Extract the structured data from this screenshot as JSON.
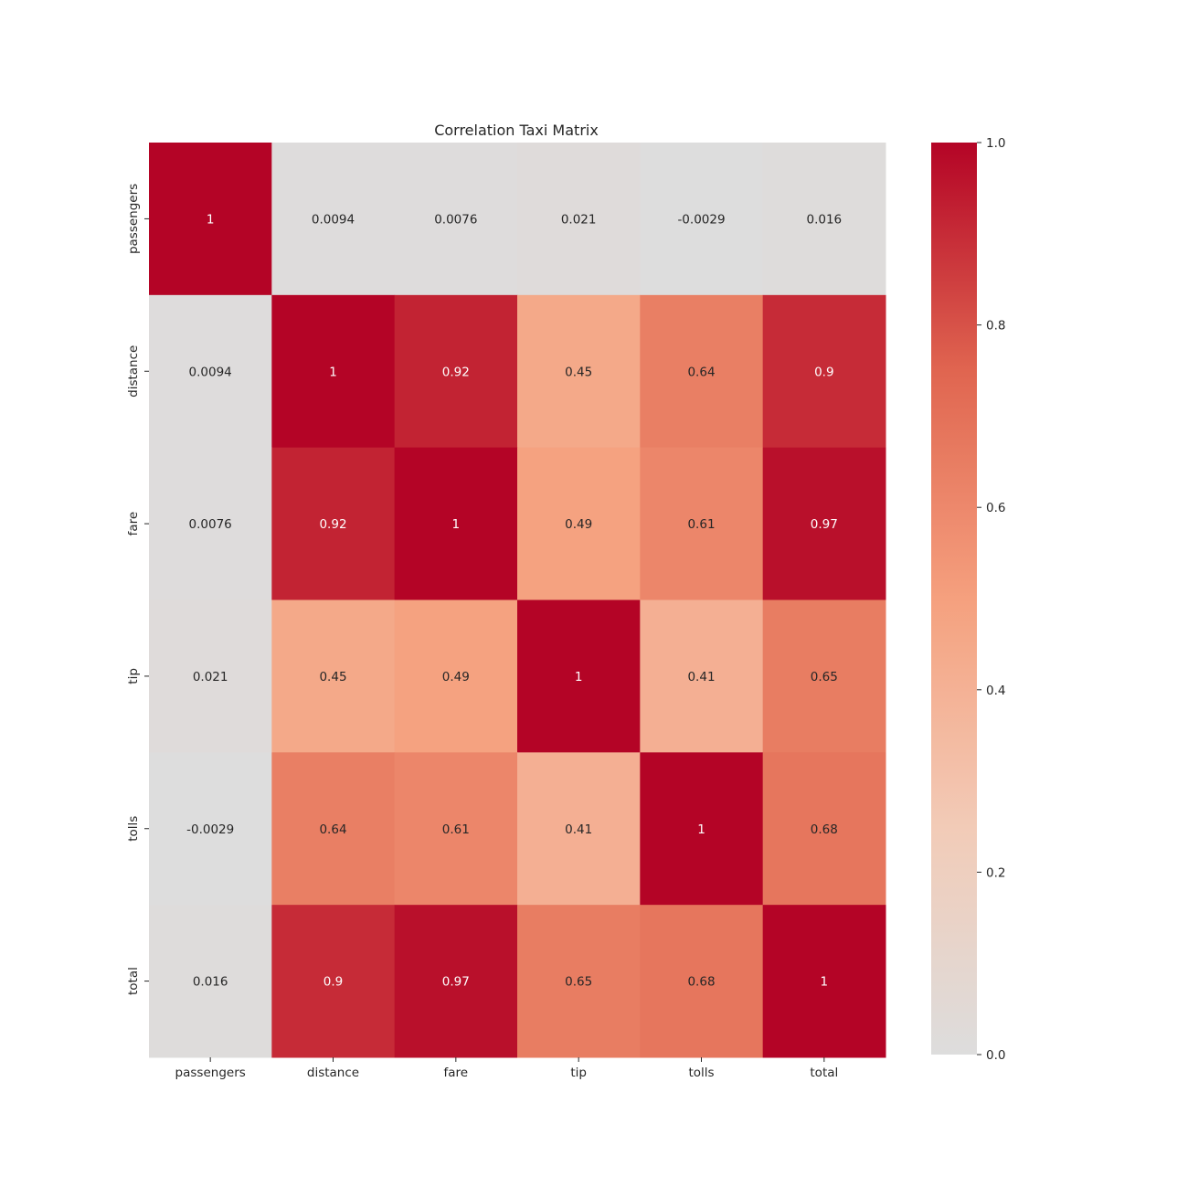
{
  "chart_data": {
    "type": "heatmap",
    "title": "Correlation Taxi Matrix",
    "xlabel": "",
    "ylabel": "",
    "x_categories": [
      "passengers",
      "distance",
      "fare",
      "tip",
      "tolls",
      "total"
    ],
    "y_categories": [
      "passengers",
      "distance",
      "fare",
      "tip",
      "tolls",
      "total"
    ],
    "values": [
      [
        1,
        0.0094,
        0.0076,
        0.021,
        -0.0029,
        0.016
      ],
      [
        0.0094,
        1,
        0.92,
        0.45,
        0.64,
        0.9
      ],
      [
        0.0076,
        0.92,
        1,
        0.49,
        0.61,
        0.97
      ],
      [
        0.021,
        0.45,
        0.49,
        1,
        0.41,
        0.65
      ],
      [
        -0.0029,
        0.64,
        0.61,
        0.41,
        1,
        0.68
      ],
      [
        0.016,
        0.9,
        0.97,
        0.65,
        0.68,
        1
      ]
    ],
    "annotations": [
      [
        "1",
        "0.0094",
        "0.0076",
        "0.021",
        "-0.0029",
        "0.016"
      ],
      [
        "0.0094",
        "1",
        "0.92",
        "0.45",
        "0.64",
        "0.9"
      ],
      [
        "0.0076",
        "0.92",
        "1",
        "0.49",
        "0.61",
        "0.97"
      ],
      [
        "0.021",
        "0.45",
        "0.49",
        "1",
        "0.41",
        "0.65"
      ],
      [
        "-0.0029",
        "0.64",
        "0.61",
        "0.41",
        "1",
        "0.68"
      ],
      [
        "0.016",
        "0.9",
        "0.97",
        "0.65",
        "0.68",
        "1"
      ]
    ],
    "colormap": "coolwarm",
    "color_range": [
      0,
      1
    ],
    "colorbar": {
      "ticks": [
        0,
        0.2,
        0.4,
        0.6,
        0.8,
        1
      ],
      "tick_labels": [
        "0.0",
        "0.2",
        "0.4",
        "0.6",
        "0.8",
        "1.0"
      ]
    },
    "colors": {
      "low": "#dcdddd",
      "high": "#b40426"
    }
  }
}
